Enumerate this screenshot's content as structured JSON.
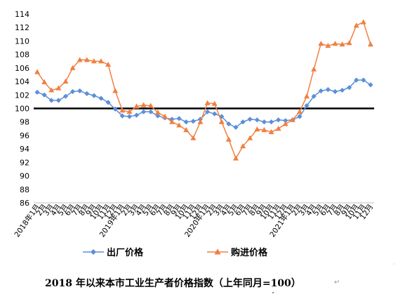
{
  "chart_data": {
    "type": "line",
    "title": "",
    "xlabel": "",
    "ylabel": "",
    "ylim": [
      86,
      114
    ],
    "yticks": [
      86,
      88,
      90,
      92,
      94,
      96,
      98,
      100,
      102,
      104,
      106,
      108,
      110,
      112,
      114
    ],
    "baseline": 100,
    "grid": false,
    "legend_position": "bottom",
    "categories": [
      "2018年1月",
      "2月",
      "3月",
      "4月",
      "5月",
      "6月",
      "7月",
      "8月",
      "9月",
      "10月",
      "11月",
      "12月",
      "2019年1月",
      "2月",
      "3月",
      "4月",
      "5月",
      "6月",
      "7月",
      "8月",
      "9月",
      "10月",
      "11月",
      "12月",
      "2020年1月",
      "2月",
      "3月",
      "4月",
      "5月",
      "6月",
      "7月",
      "8月",
      "9月",
      "10月",
      "11月",
      "12月",
      "2021年1月",
      "2月",
      "3月",
      "4月",
      "5月",
      "6月",
      "7月",
      "8月",
      "9月",
      "10月",
      "11月",
      "12月"
    ],
    "series": [
      {
        "name": "出厂价格",
        "color": "#5B8FD9",
        "marker": "diamond",
        "values": [
          102.4,
          102.0,
          101.2,
          101.2,
          101.8,
          102.5,
          102.6,
          102.2,
          101.9,
          101.5,
          100.9,
          99.9,
          98.9,
          98.8,
          99.0,
          99.5,
          99.5,
          98.9,
          98.6,
          98.4,
          98.5,
          98.0,
          98.1,
          98.4,
          99.5,
          99.2,
          98.8,
          97.7,
          97.2,
          98.0,
          98.4,
          98.3,
          98.0,
          98.0,
          98.3,
          98.2,
          98.3,
          98.8,
          100.4,
          101.8,
          102.6,
          102.8,
          102.5,
          102.7,
          103.1,
          104.2,
          104.2,
          103.5
        ]
      },
      {
        "name": "购进价格",
        "color": "#F08040",
        "marker": "triangle",
        "values": [
          105.4,
          103.9,
          102.7,
          103.0,
          104.0,
          106.0,
          107.2,
          107.2,
          107.0,
          107.0,
          106.5,
          102.6,
          99.7,
          99.5,
          100.3,
          100.5,
          100.4,
          99.4,
          98.8,
          98.0,
          97.5,
          96.8,
          95.6,
          98.0,
          100.8,
          100.7,
          98.0,
          95.4,
          92.6,
          94.4,
          95.6,
          96.9,
          96.8,
          96.5,
          97.0,
          97.7,
          98.3,
          99.5,
          101.8,
          105.8,
          109.6,
          109.3,
          109.6,
          109.5,
          109.7,
          112.3,
          112.8,
          109.5
        ]
      }
    ]
  },
  "caption": "2018 年以来本市工业生产者价格指数（上年同月=100）",
  "caption_mark": "↵"
}
